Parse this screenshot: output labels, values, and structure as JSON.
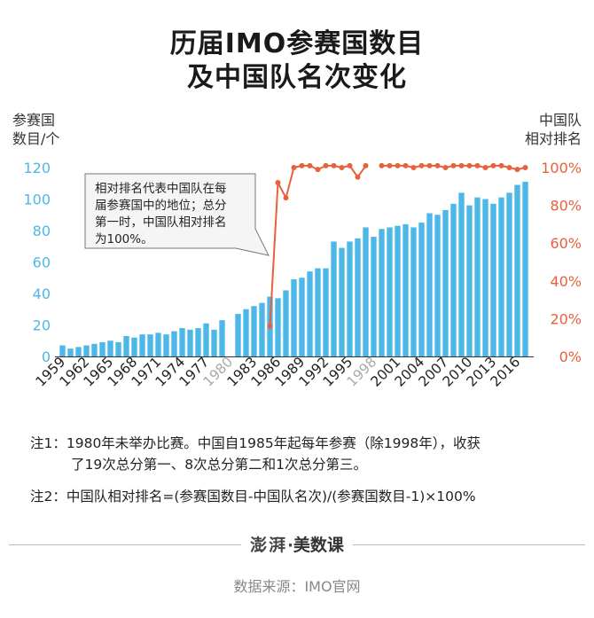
{
  "title_line1": "历届IMO参赛国数目",
  "title_line2": "及中国队名次变化",
  "left_axis_title": [
    "参赛国",
    "数目/个"
  ],
  "right_axis_title": [
    "中国队",
    "相对排名"
  ],
  "annotation": [
    "相对排名代表中国队在每",
    "届参赛国中的地位；总分",
    "第一时，中国队相对排名",
    "为100%。"
  ],
  "notes": {
    "note1_line1": "注1：1980年未举办比赛。中国自1985年起每年参赛（除1998年），收获",
    "note1_line2": "了19次总分第一、8次总分第二和1次总分第三。",
    "note2": "注2：中国队相对排名=(参赛国数目-中国队名次)/(参赛国数目-1)×100%"
  },
  "brand": {
    "logo": "澎湃",
    "sep": "·",
    "name": "美数课"
  },
  "source": "数据来源：IMO官网",
  "colors": {
    "bar": "#4db8e8",
    "line": "#e8603c",
    "left_axis": "#4db8e8",
    "right_axis": "#e8603c",
    "missing_year": "#aaaaaa"
  },
  "chart_data": {
    "type": "bar+line",
    "title": "历届IMO参赛国数目及中国队名次变化",
    "x": [
      1959,
      1960,
      1961,
      1962,
      1963,
      1964,
      1965,
      1966,
      1967,
      1968,
      1969,
      1970,
      1971,
      1972,
      1973,
      1974,
      1975,
      1976,
      1977,
      1978,
      1979,
      1980,
      1981,
      1982,
      1983,
      1984,
      1985,
      1986,
      1987,
      1988,
      1989,
      1990,
      1991,
      1992,
      1993,
      1994,
      1995,
      1996,
      1997,
      1998,
      1999,
      2000,
      2001,
      2002,
      2003,
      2004,
      2005,
      2006,
      2007,
      2008,
      2009,
      2010,
      2011,
      2012,
      2013,
      2014,
      2015,
      2016,
      2017
    ],
    "xticks": [
      "1959",
      "1962",
      "1965",
      "1968",
      "1971",
      "1974",
      "1977",
      "1980",
      "1983",
      "1986",
      "1989",
      "1992",
      "1995",
      "1998",
      "2001",
      "2004",
      "2007",
      "2010",
      "2013",
      "2016"
    ],
    "highlight_ticks": [
      "1980",
      "1998"
    ],
    "series": [
      {
        "name": "参赛国数目",
        "axis": "left",
        "type": "bar",
        "values": [
          7,
          5,
          6,
          7,
          8,
          9,
          10,
          9,
          13,
          12,
          14,
          14,
          15,
          14,
          16,
          18,
          17,
          18,
          21,
          17,
          23,
          null,
          27,
          30,
          32,
          34,
          38,
          37,
          42,
          49,
          50,
          54,
          56,
          56,
          73,
          69,
          73,
          75,
          82,
          76,
          81,
          82,
          83,
          84,
          82,
          85,
          91,
          90,
          93,
          97,
          104,
          96,
          101,
          100,
          97,
          101,
          104,
          109,
          111
        ]
      },
      {
        "name": "中国队相对排名(%)",
        "axis": "right",
        "type": "line",
        "values": [
          null,
          null,
          null,
          null,
          null,
          null,
          null,
          null,
          null,
          null,
          null,
          null,
          null,
          null,
          null,
          null,
          null,
          null,
          null,
          null,
          null,
          null,
          null,
          null,
          null,
          null,
          16,
          92,
          84,
          100,
          101,
          101,
          99,
          101,
          101,
          100,
          101,
          95,
          101,
          null,
          101,
          101,
          101,
          101,
          100,
          101,
          101,
          101,
          100,
          101,
          101,
          101,
          101,
          100,
          101,
          101,
          100,
          99,
          100
        ]
      }
    ],
    "y_left": {
      "label": "参赛国数目/个",
      "ticks": [
        "0",
        "20",
        "40",
        "60",
        "80",
        "100",
        "120"
      ],
      "ylim": [
        0,
        120
      ]
    },
    "y_right": {
      "label": "中国队相对排名",
      "ticks": [
        "0%",
        "20%",
        "40%",
        "60%",
        "80%",
        "100%"
      ],
      "ylim": [
        0,
        100
      ]
    }
  }
}
